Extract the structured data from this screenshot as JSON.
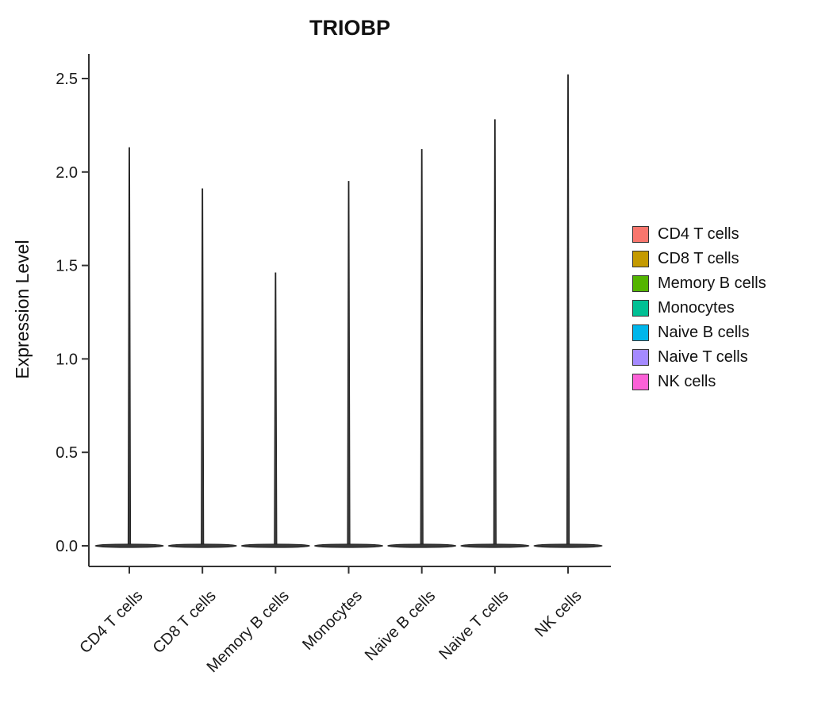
{
  "chart_data": {
    "type": "violin",
    "title": "TRIOBP",
    "ylabel": "Expression Level",
    "xlabel": "",
    "categories": [
      "CD4 T cells",
      "CD8 T cells",
      "Memory B cells",
      "Monocytes",
      "Naive B cells",
      "Naive T cells",
      "NK cells"
    ],
    "max_values": [
      2.13,
      1.91,
      1.46,
      1.95,
      2.12,
      2.28,
      2.52
    ],
    "baseline_value": 0.0,
    "yticks": [
      0.0,
      0.5,
      1.0,
      1.5,
      2.0,
      2.5
    ],
    "ylim": [
      0,
      2.6
    ],
    "grid": false,
    "legend_position": "right",
    "violin_color": "#3a3a3a",
    "violin_outline": "#222222",
    "axis_color": "#333333",
    "legend": [
      {
        "label": "CD4 T cells",
        "color": "#F8766D"
      },
      {
        "label": "CD8 T cells",
        "color": "#C49A00"
      },
      {
        "label": "Memory B cells",
        "color": "#53B400"
      },
      {
        "label": "Monocytes",
        "color": "#00C094"
      },
      {
        "label": "Naive B cells",
        "color": "#00B6EB"
      },
      {
        "label": "Naive T cells",
        "color": "#A58AFF"
      },
      {
        "label": "NK cells",
        "color": "#FB61D7"
      }
    ]
  }
}
